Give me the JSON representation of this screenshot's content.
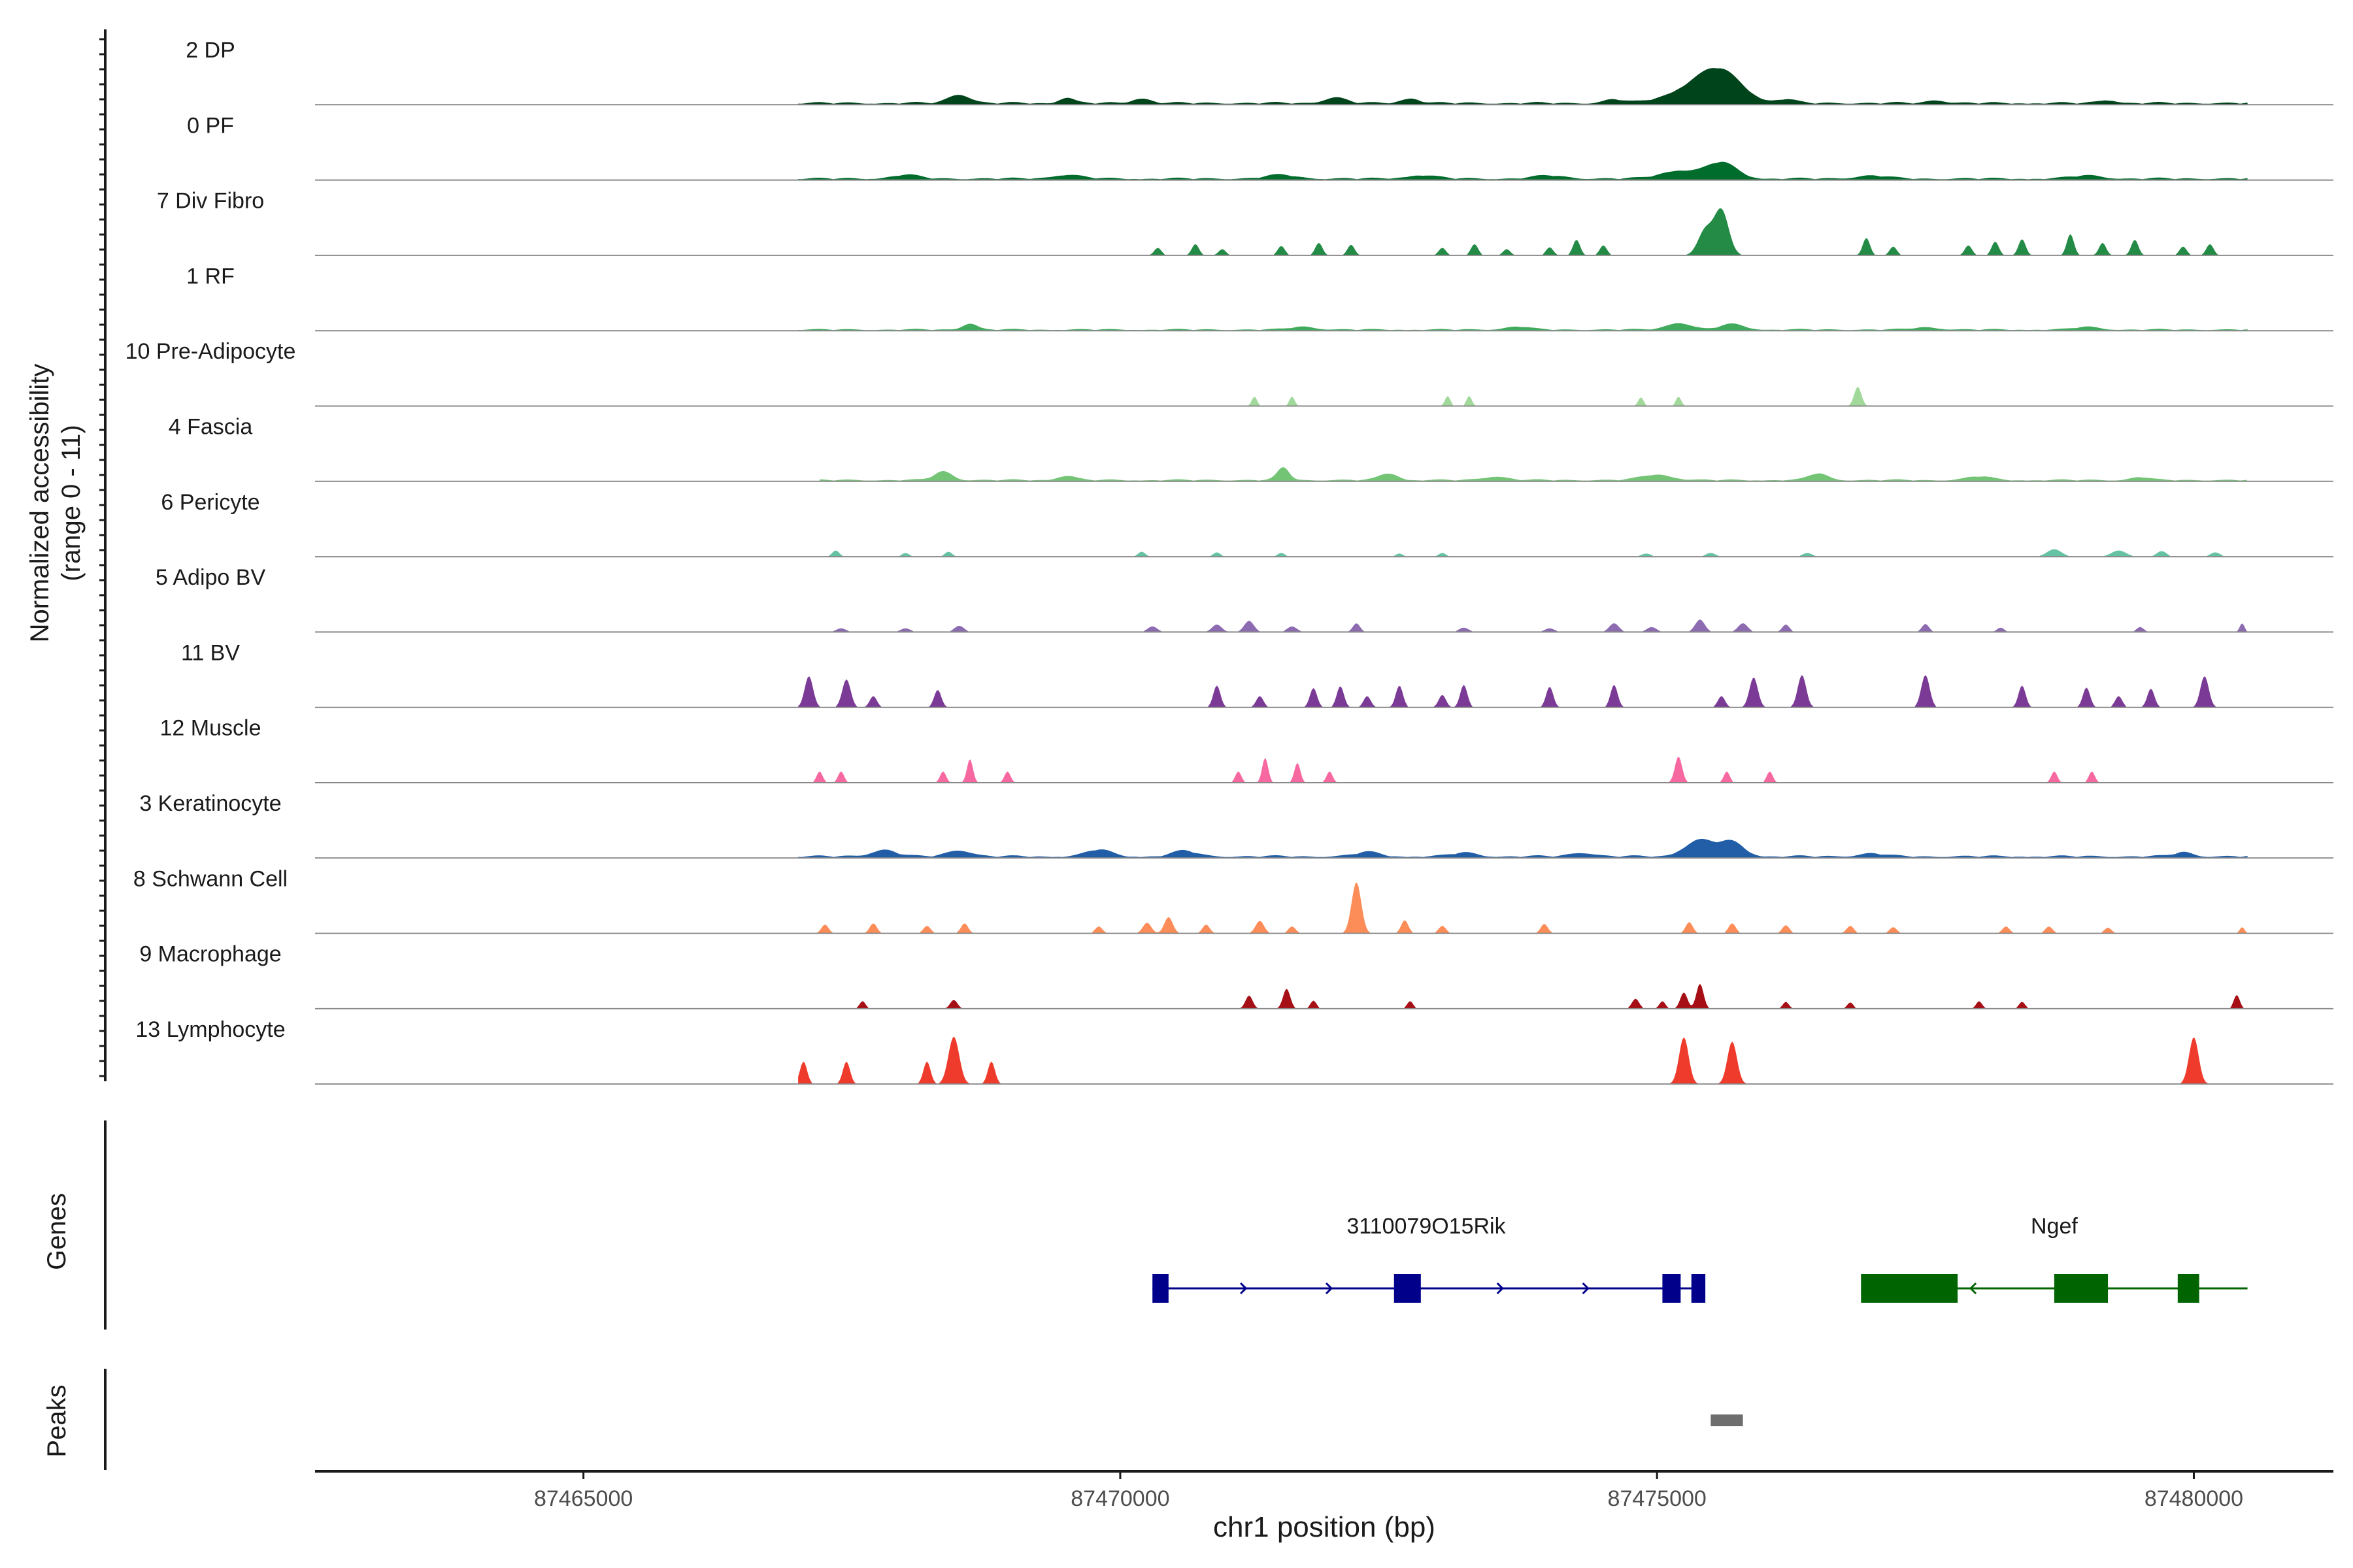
{
  "chart_data": {
    "type": "area",
    "title": "",
    "xlabel": "chr1 position (bp)",
    "ylabel": "Normalized accessibility",
    "ylabel_range": "(range 0 - 11)",
    "xlim": [
      87462500,
      87481300
    ],
    "x_ticks": [
      87465000,
      87470000,
      87475000,
      87480000
    ],
    "x_tick_labels": [
      "87465000",
      "87470000",
      "87475000",
      "87480000"
    ],
    "track_ylim": [
      0,
      11
    ],
    "tracks": [
      {
        "name": "2 DP",
        "color": "#00441b",
        "x0": 87467000,
        "x1": 87480500,
        "base": 0.45,
        "peaks": [
          [
            87475600,
            4.2,
            350
          ],
          [
            87475350,
            2.2,
            450
          ],
          [
            87468500,
            1.4,
            180
          ],
          [
            87469500,
            0.9,
            120
          ],
          [
            87470200,
            0.8,
            150
          ],
          [
            87472000,
            0.9,
            180
          ],
          [
            87472700,
            0.8,
            150
          ],
          [
            87474600,
            0.6,
            150
          ],
          [
            87476200,
            0.6,
            150
          ],
          [
            87477600,
            0.5,
            150
          ],
          [
            87479200,
            0.5,
            150
          ]
        ]
      },
      {
        "name": "0 PF",
        "color": "#006d2c",
        "x0": 87467000,
        "x1": 87480500,
        "base": 0.4,
        "peaks": [
          [
            87475600,
            2.6,
            250
          ],
          [
            87475200,
            1.3,
            300
          ],
          [
            87468000,
            0.6,
            220
          ],
          [
            87469500,
            0.6,
            250
          ],
          [
            87471500,
            0.6,
            250
          ],
          [
            87472800,
            0.55,
            250
          ],
          [
            87474000,
            0.5,
            250
          ],
          [
            87477000,
            0.5,
            250
          ],
          [
            87479000,
            0.5,
            250
          ]
        ]
      },
      {
        "name": "7 Div Fibro",
        "color": "#238b45",
        "x0": 87470000,
        "x1": 87480300,
        "base": 0,
        "peaks": [
          [
            87475600,
            7.2,
            120
          ],
          [
            87475450,
            4.0,
            120
          ],
          [
            87470350,
            1.2,
            60
          ],
          [
            87470700,
            1.8,
            60
          ],
          [
            87470950,
            1.0,
            60
          ],
          [
            87471500,
            1.5,
            60
          ],
          [
            87471850,
            2.0,
            60
          ],
          [
            87472150,
            1.7,
            60
          ],
          [
            87473000,
            1.2,
            60
          ],
          [
            87473300,
            1.8,
            60
          ],
          [
            87473600,
            1.0,
            60
          ],
          [
            87474000,
            1.3,
            60
          ],
          [
            87474250,
            2.5,
            60
          ],
          [
            87474500,
            1.6,
            60
          ],
          [
            87476950,
            2.8,
            60
          ],
          [
            87477200,
            1.4,
            60
          ],
          [
            87477900,
            1.6,
            60
          ],
          [
            87478150,
            2.2,
            60
          ],
          [
            87478400,
            2.6,
            60
          ],
          [
            87478850,
            3.4,
            60
          ],
          [
            87479150,
            2.0,
            60
          ],
          [
            87479450,
            2.5,
            60
          ],
          [
            87479900,
            1.4,
            60
          ],
          [
            87480150,
            1.8,
            60
          ]
        ]
      },
      {
        "name": "1 RF",
        "color": "#41ab5d",
        "x0": 87467000,
        "x1": 87480500,
        "base": 0.3,
        "peaks": [
          [
            87468600,
            1.0,
            120
          ],
          [
            87475200,
            1.1,
            200
          ],
          [
            87475700,
            0.9,
            200
          ],
          [
            87471700,
            0.5,
            200
          ],
          [
            87473700,
            0.5,
            200
          ],
          [
            87477500,
            0.4,
            200
          ],
          [
            87479000,
            0.45,
            200
          ]
        ]
      },
      {
        "name": "10 Pre-Adipocyte",
        "color": "#a1d99b",
        "x0": 87467000,
        "x1": 87480500,
        "base": 0,
        "peaks": [
          [
            87471250,
            1.5,
            45
          ],
          [
            87471600,
            1.5,
            45
          ],
          [
            87473050,
            1.6,
            45
          ],
          [
            87473250,
            1.6,
            45
          ],
          [
            87474850,
            1.4,
            45
          ],
          [
            87475200,
            1.5,
            45
          ],
          [
            87476870,
            3.1,
            60
          ]
        ]
      },
      {
        "name": "4 Fascia",
        "color": "#74c476",
        "x0": 87467200,
        "x1": 87480500,
        "base": 0.35,
        "peaks": [
          [
            87471520,
            2.0,
            100
          ],
          [
            87468350,
            1.4,
            150
          ],
          [
            87472500,
            1.1,
            150
          ],
          [
            87475000,
            0.9,
            250
          ],
          [
            87476500,
            1.1,
            150
          ],
          [
            87469500,
            0.7,
            150
          ],
          [
            87473500,
            0.6,
            200
          ],
          [
            87478000,
            0.6,
            200
          ],
          [
            87479500,
            0.5,
            150
          ]
        ]
      },
      {
        "name": "6 Pericyte",
        "color": "#66c2a4",
        "x0": 87467200,
        "x1": 87480500,
        "base": 0,
        "peaks": [
          [
            87467350,
            1.0,
            60
          ],
          [
            87468000,
            0.6,
            60
          ],
          [
            87468400,
            0.8,
            60
          ],
          [
            87470200,
            0.8,
            60
          ],
          [
            87470900,
            0.7,
            60
          ],
          [
            87471500,
            0.6,
            60
          ],
          [
            87472600,
            0.5,
            60
          ],
          [
            87473000,
            0.6,
            60
          ],
          [
            87474900,
            0.5,
            80
          ],
          [
            87475500,
            0.6,
            80
          ],
          [
            87476400,
            0.6,
            80
          ],
          [
            87478700,
            1.2,
            120
          ],
          [
            87479300,
            1.0,
            120
          ],
          [
            87479700,
            0.9,
            80
          ],
          [
            87480200,
            0.7,
            80
          ]
        ]
      },
      {
        "name": "5 Adipo BV",
        "color": "#8c6bb1",
        "x0": 87467000,
        "x1": 87480500,
        "base": 0,
        "peaks": [
          [
            87467400,
            0.6,
            80
          ],
          [
            87468000,
            0.6,
            80
          ],
          [
            87468500,
            1.0,
            80
          ],
          [
            87470300,
            0.9,
            80
          ],
          [
            87470900,
            1.2,
            80
          ],
          [
            87471200,
            1.8,
            80
          ],
          [
            87471600,
            0.9,
            80
          ],
          [
            87472200,
            1.4,
            60
          ],
          [
            87473200,
            0.7,
            80
          ],
          [
            87474000,
            0.6,
            80
          ],
          [
            87474600,
            1.4,
            80
          ],
          [
            87474950,
            0.8,
            80
          ],
          [
            87475400,
            2.0,
            80
          ],
          [
            87475800,
            1.4,
            80
          ],
          [
            87476200,
            1.2,
            60
          ],
          [
            87477500,
            1.3,
            60
          ],
          [
            87478200,
            0.7,
            60
          ],
          [
            87479500,
            0.8,
            60
          ],
          [
            87480450,
            1.4,
            40
          ]
        ]
      },
      {
        "name": "11 BV",
        "color": "#7a3a96",
        "x0": 87467000,
        "x1": 87480300,
        "base": 0,
        "peaks": [
          [
            87467100,
            5.0,
            70
          ],
          [
            87467450,
            4.5,
            70
          ],
          [
            87467700,
            1.8,
            60
          ],
          [
            87468300,
            2.8,
            60
          ],
          [
            87470900,
            3.5,
            60
          ],
          [
            87471300,
            1.8,
            60
          ],
          [
            87471800,
            3.1,
            60
          ],
          [
            87472050,
            3.4,
            60
          ],
          [
            87472300,
            1.8,
            60
          ],
          [
            87472600,
            3.5,
            60
          ],
          [
            87473000,
            2.0,
            60
          ],
          [
            87473200,
            3.6,
            60
          ],
          [
            87474000,
            3.3,
            60
          ],
          [
            87474600,
            3.6,
            60
          ],
          [
            87475600,
            1.8,
            60
          ],
          [
            87475900,
            4.8,
            70
          ],
          [
            87476350,
            5.2,
            70
          ],
          [
            87477500,
            5.2,
            70
          ],
          [
            87478400,
            3.5,
            60
          ],
          [
            87479000,
            3.2,
            60
          ],
          [
            87479300,
            1.8,
            60
          ],
          [
            87479600,
            3.0,
            60
          ],
          [
            87480100,
            5.0,
            70
          ]
        ]
      },
      {
        "name": "12 Muscle",
        "color": "#f768a1",
        "x0": 87467000,
        "x1": 87480000,
        "base": 0,
        "peaks": [
          [
            87467200,
            1.8,
            50
          ],
          [
            87467400,
            1.8,
            50
          ],
          [
            87468350,
            1.8,
            50
          ],
          [
            87468600,
            3.8,
            50
          ],
          [
            87468950,
            1.8,
            50
          ],
          [
            87471100,
            1.8,
            50
          ],
          [
            87471350,
            4.0,
            50
          ],
          [
            87471650,
            3.2,
            50
          ],
          [
            87471950,
            1.8,
            50
          ],
          [
            87475200,
            4.2,
            60
          ],
          [
            87475650,
            1.8,
            50
          ],
          [
            87476050,
            1.8,
            50
          ],
          [
            87478700,
            1.8,
            50
          ],
          [
            87479050,
            1.8,
            50
          ]
        ]
      },
      {
        "name": "3 Keratinocyte",
        "color": "#225ea8",
        "x0": 87467000,
        "x1": 87480500,
        "base": 0.45,
        "peaks": [
          [
            87475400,
            2.6,
            250
          ],
          [
            87475700,
            2.2,
            200
          ],
          [
            87467800,
            1.1,
            200
          ],
          [
            87468500,
            1.0,
            200
          ],
          [
            87469800,
            1.1,
            200
          ],
          [
            87470600,
            0.9,
            200
          ],
          [
            87472300,
            0.7,
            200
          ],
          [
            87473200,
            0.6,
            200
          ],
          [
            87474300,
            0.6,
            200
          ],
          [
            87477000,
            0.5,
            200
          ],
          [
            87479900,
            0.7,
            150
          ]
        ]
      },
      {
        "name": "8 Schwann Cell",
        "color": "#fc8d59",
        "x0": 87467000,
        "x1": 87480500,
        "base": 0,
        "peaks": [
          [
            87472200,
            8.2,
            80
          ],
          [
            87467250,
            1.4,
            60
          ],
          [
            87467700,
            1.6,
            60
          ],
          [
            87468200,
            1.2,
            60
          ],
          [
            87468550,
            1.6,
            60
          ],
          [
            87469800,
            1.1,
            60
          ],
          [
            87470250,
            1.7,
            70
          ],
          [
            87470450,
            2.6,
            70
          ],
          [
            87470800,
            1.4,
            60
          ],
          [
            87471300,
            2.0,
            70
          ],
          [
            87471600,
            1.1,
            60
          ],
          [
            87472650,
            2.1,
            60
          ],
          [
            87473000,
            1.2,
            60
          ],
          [
            87473950,
            1.5,
            60
          ],
          [
            87475300,
            1.8,
            60
          ],
          [
            87475700,
            1.6,
            60
          ],
          [
            87476200,
            1.3,
            60
          ],
          [
            87476800,
            1.2,
            60
          ],
          [
            87477200,
            1.0,
            60
          ],
          [
            87478250,
            1.1,
            60
          ],
          [
            87478650,
            1.1,
            60
          ],
          [
            87479200,
            0.9,
            60
          ],
          [
            87480450,
            1.0,
            40
          ]
        ]
      },
      {
        "name": "9 Macrophage",
        "color": "#a50f15",
        "x0": 87467000,
        "x1": 87480500,
        "base": 0,
        "peaks": [
          [
            87475400,
            4.0,
            60
          ],
          [
            87475250,
            2.6,
            60
          ],
          [
            87467600,
            1.2,
            50
          ],
          [
            87468450,
            1.4,
            60
          ],
          [
            87471200,
            2.1,
            60
          ],
          [
            87471550,
            3.2,
            60
          ],
          [
            87471800,
            1.3,
            50
          ],
          [
            87472700,
            1.2,
            50
          ],
          [
            87474800,
            1.6,
            60
          ],
          [
            87475050,
            1.2,
            50
          ],
          [
            87476200,
            1.1,
            50
          ],
          [
            87476800,
            1.0,
            50
          ],
          [
            87478000,
            1.2,
            50
          ],
          [
            87478400,
            1.1,
            50
          ],
          [
            87480400,
            2.2,
            50
          ]
        ]
      },
      {
        "name": "13 Lymphocyte",
        "color": "#ef3b2c",
        "x0": 87467000,
        "x1": 87480500,
        "base": 0,
        "peaks": [
          [
            87468450,
            7.6,
            90
          ],
          [
            87467050,
            3.6,
            60
          ],
          [
            87467450,
            3.6,
            60
          ],
          [
            87468200,
            3.6,
            60
          ],
          [
            87468800,
            3.6,
            60
          ],
          [
            87475250,
            7.5,
            80
          ],
          [
            87475700,
            6.8,
            80
          ],
          [
            87480000,
            7.5,
            80
          ]
        ]
      }
    ],
    "genes": [
      {
        "name": "3110079O15Rik",
        "color": "#00008b",
        "strand": "+",
        "start": 87470300,
        "end": 87475400,
        "exons": [
          [
            87470300,
            87470450
          ],
          [
            87472550,
            87472800
          ],
          [
            87475050,
            87475220
          ],
          [
            87475320,
            87475450
          ]
        ]
      },
      {
        "name": "Ngef",
        "color": "#006400",
        "strand": "-",
        "start": 87476900,
        "end": 87480500,
        "exons": [
          [
            87476900,
            87477800
          ],
          [
            87478700,
            87479200
          ],
          [
            87479850,
            87480050
          ]
        ]
      }
    ],
    "peaks": [
      [
        87475500,
        87475800
      ]
    ],
    "panel_labels": {
      "genes": "Genes",
      "peaks": "Peaks"
    }
  }
}
